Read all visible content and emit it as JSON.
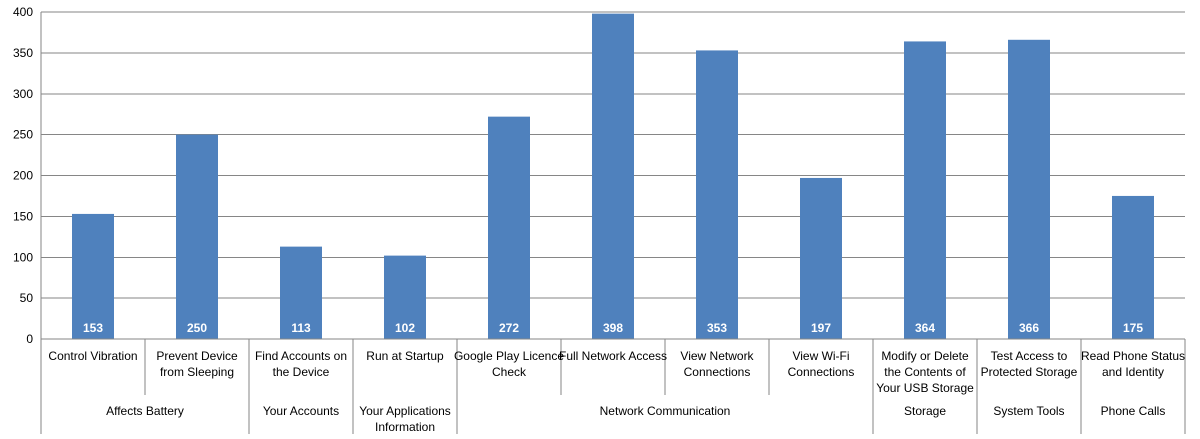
{
  "chart_data": {
    "type": "bar",
    "title": "",
    "xlabel": "",
    "ylabel": "",
    "ylim": [
      0,
      400
    ],
    "yticks": [
      0,
      50,
      100,
      150,
      200,
      250,
      300,
      350,
      400
    ],
    "ytick_labels": [
      "0",
      "50",
      "100",
      "150",
      "200",
      "250",
      "300",
      "350",
      "400"
    ],
    "grid": true,
    "legend": "none",
    "bar_color": "#4f81bd",
    "categories": [
      [
        "Control Vibration"
      ],
      [
        "Prevent Device",
        "from Sleeping"
      ],
      [
        "Find Accounts on",
        "the Device"
      ],
      [
        "Run at Startup"
      ],
      [
        "Google Play Licence",
        "Check"
      ],
      [
        "Full Network Access"
      ],
      [
        "View Network",
        "Connections"
      ],
      [
        "View Wi-Fi",
        "Connections"
      ],
      [
        "Modify or Delete",
        "the Contents of",
        "Your USB Storage"
      ],
      [
        "Test Access to",
        "Protected Storage"
      ],
      [
        "Read Phone Status",
        "and Identity"
      ]
    ],
    "values": [
      153,
      250,
      113,
      102,
      272,
      398,
      353,
      197,
      364,
      366,
      175
    ],
    "data_labels": [
      "153",
      "250",
      "113",
      "102",
      "272",
      "398",
      "353",
      "197",
      "364",
      "366",
      "175"
    ],
    "groups": [
      {
        "label": [
          "Affects Battery"
        ],
        "start": 0,
        "end": 1
      },
      {
        "label": [
          "Your Accounts"
        ],
        "start": 2,
        "end": 2
      },
      {
        "label": [
          "Your Applications",
          "Information"
        ],
        "start": 3,
        "end": 3
      },
      {
        "label": [
          "Network Communication"
        ],
        "start": 4,
        "end": 7
      },
      {
        "label": [
          "Storage"
        ],
        "start": 8,
        "end": 8
      },
      {
        "label": [
          "System Tools"
        ],
        "start": 9,
        "end": 9
      },
      {
        "label": [
          "Phone Calls"
        ],
        "start": 10,
        "end": 10
      }
    ]
  }
}
